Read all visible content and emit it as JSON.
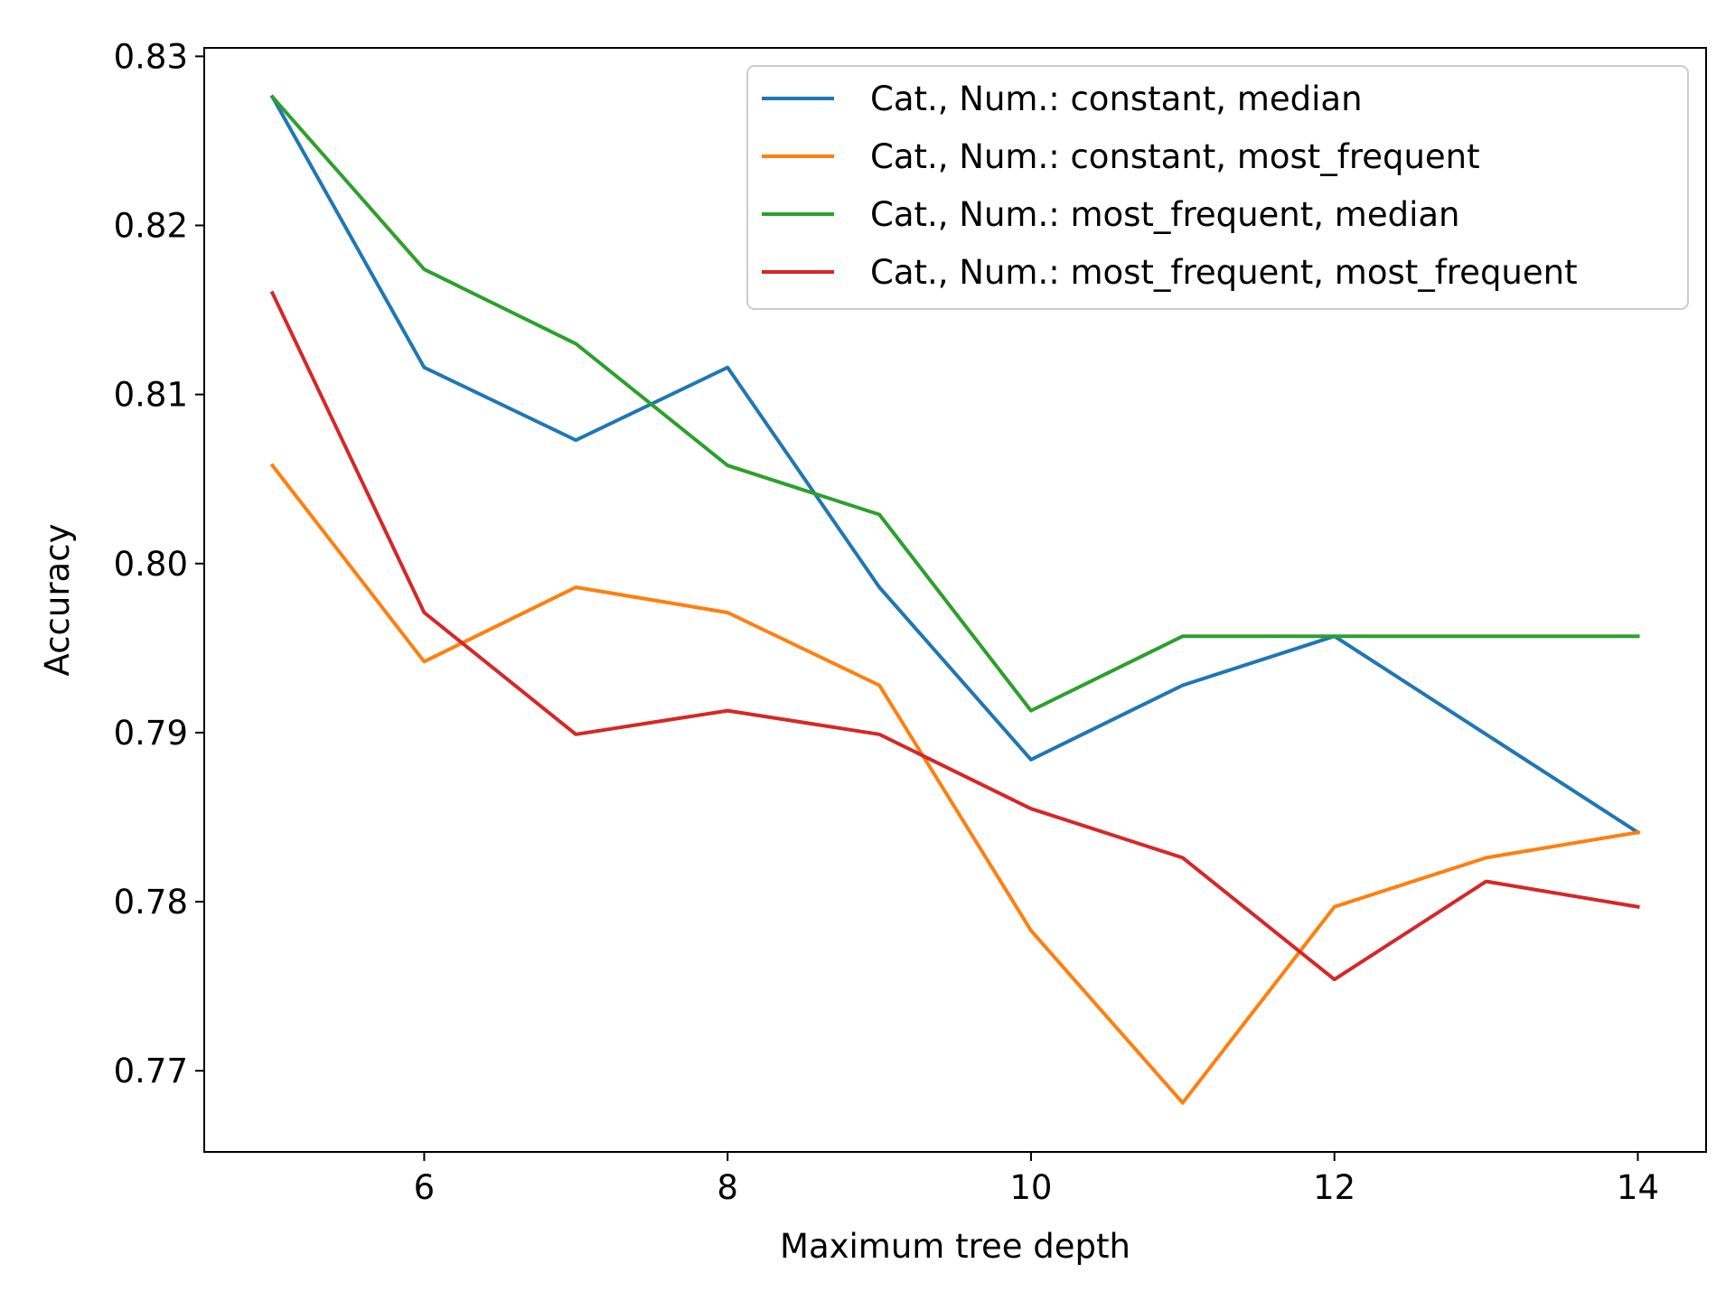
{
  "chart_data": {
    "type": "line",
    "title": "",
    "xlabel": "Maximum tree depth",
    "ylabel": "Accuracy",
    "x": [
      5,
      6,
      7,
      8,
      9,
      10,
      11,
      12,
      13,
      14
    ],
    "xlim": [
      4.55,
      14.45
    ],
    "ylim": [
      0.7652,
      0.8305
    ],
    "xticks": [
      6,
      8,
      10,
      12,
      14
    ],
    "xtick_labels": [
      "6",
      "8",
      "10",
      "12",
      "14"
    ],
    "yticks": [
      0.77,
      0.78,
      0.79,
      0.8,
      0.81,
      0.82,
      0.83
    ],
    "ytick_labels": [
      "0.77",
      "0.78",
      "0.79",
      "0.80",
      "0.81",
      "0.82",
      "0.83"
    ],
    "grid": false,
    "legend_position": "top-right",
    "series": [
      {
        "name": "Cat., Num.: constant, median",
        "color": "#1f77b4",
        "values": [
          0.8276,
          0.8116,
          0.8073,
          0.8116,
          0.7986,
          0.7884,
          0.7928,
          0.7957,
          0.7899,
          0.7841
        ]
      },
      {
        "name": "Cat., Num.: constant, most_frequent",
        "color": "#ff7f0e",
        "values": [
          0.8058,
          0.7942,
          0.7986,
          0.7971,
          0.7928,
          0.7783,
          0.7681,
          0.7797,
          0.7826,
          0.7841
        ]
      },
      {
        "name": "Cat., Num.: most_frequent, median",
        "color": "#2ca02c",
        "values": [
          0.8276,
          0.8174,
          0.813,
          0.8058,
          0.8029,
          0.7913,
          0.7957,
          0.7957,
          0.7957,
          0.7957
        ]
      },
      {
        "name": "Cat., Num.: most_frequent, most_frequent",
        "color": "#d62728",
        "values": [
          0.816,
          0.7971,
          0.7899,
          0.7913,
          0.7899,
          0.7855,
          0.7826,
          0.7754,
          0.7812,
          0.7797
        ]
      }
    ]
  }
}
